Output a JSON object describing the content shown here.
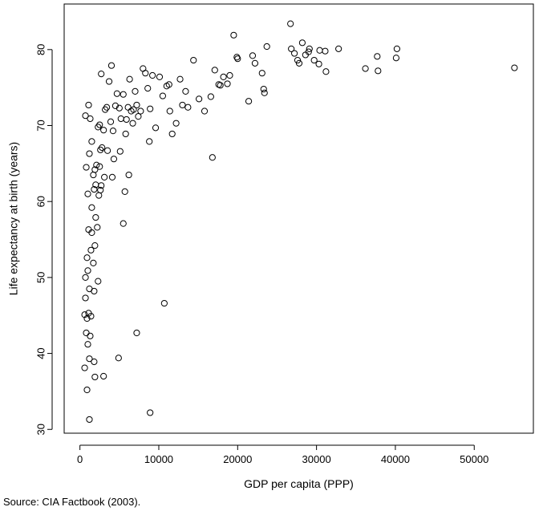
{
  "chart_data": {
    "type": "scatter",
    "xlabel": "GDP per capita (PPP)",
    "ylabel": "Life expectancy at birth (years)",
    "xlim": [
      -2000,
      57500
    ],
    "ylim": [
      29.5,
      86
    ],
    "xticks": [
      0,
      10000,
      20000,
      30000,
      40000,
      50000
    ],
    "yticks": [
      30,
      40,
      50,
      60,
      70,
      80
    ],
    "grid": false,
    "points": [
      [
        700,
        71.3
      ],
      [
        1100,
        72.7
      ],
      [
        1300,
        70.9
      ],
      [
        800,
        64.5
      ],
      [
        1200,
        66.3
      ],
      [
        1500,
        67.9
      ],
      [
        1000,
        61.0
      ],
      [
        1700,
        63.5
      ],
      [
        1900,
        64.2
      ],
      [
        2100,
        64.8
      ],
      [
        2300,
        69.8
      ],
      [
        2500,
        70.1
      ],
      [
        2600,
        66.8
      ],
      [
        2700,
        76.8
      ],
      [
        3000,
        69.4
      ],
      [
        3200,
        72.1
      ],
      [
        3400,
        72.4
      ],
      [
        3500,
        66.7
      ],
      [
        3700,
        75.8
      ],
      [
        4000,
        77.9
      ],
      [
        4200,
        69.3
      ],
      [
        4500,
        72.6
      ],
      [
        4700,
        74.2
      ],
      [
        5000,
        72.3
      ],
      [
        5200,
        70.9
      ],
      [
        5500,
        74.1
      ],
      [
        5800,
        68.9
      ],
      [
        6100,
        72.4
      ],
      [
        6300,
        76.1
      ],
      [
        6500,
        71.9
      ],
      [
        6800,
        72.1
      ],
      [
        7000,
        74.5
      ],
      [
        7200,
        72.7
      ],
      [
        7400,
        71.2
      ],
      [
        7700,
        71.9
      ],
      [
        8000,
        77.5
      ],
      [
        8300,
        76.9
      ],
      [
        8600,
        74.9
      ],
      [
        8900,
        72.2
      ],
      [
        9200,
        76.6
      ],
      [
        9600,
        69.7
      ],
      [
        10100,
        76.4
      ],
      [
        10500,
        73.9
      ],
      [
        11000,
        75.2
      ],
      [
        11400,
        71.9
      ],
      [
        11700,
        68.9
      ],
      [
        12200,
        70.3
      ],
      [
        12700,
        76.1
      ],
      [
        13000,
        72.7
      ],
      [
        13700,
        72.4
      ],
      [
        14400,
        78.6
      ],
      [
        15100,
        73.5
      ],
      [
        15800,
        71.9
      ],
      [
        16600,
        73.8
      ],
      [
        17100,
        77.3
      ],
      [
        17600,
        75.4
      ],
      [
        18200,
        76.4
      ],
      [
        19000,
        76.6
      ],
      [
        19500,
        81.9
      ],
      [
        20000,
        78.8
      ],
      [
        21400,
        73.2
      ],
      [
        21900,
        79.2
      ],
      [
        23100,
        76.9
      ],
      [
        23700,
        80.4
      ],
      [
        26700,
        83.4
      ],
      [
        27200,
        79.5
      ],
      [
        27800,
        78.2
      ],
      [
        28200,
        80.9
      ],
      [
        28600,
        79.3
      ],
      [
        29100,
        80.1
      ],
      [
        29700,
        78.6
      ],
      [
        30400,
        79.9
      ],
      [
        31100,
        79.8
      ],
      [
        32800,
        80.1
      ],
      [
        36200,
        77.5
      ],
      [
        37700,
        79.1
      ],
      [
        40100,
        78.9
      ],
      [
        40200,
        80.1
      ],
      [
        55100,
        77.6
      ],
      [
        900,
        52.6
      ],
      [
        1000,
        50.9
      ],
      [
        1200,
        48.5
      ],
      [
        1400,
        53.6
      ],
      [
        1700,
        51.9
      ],
      [
        1800,
        48.2
      ],
      [
        1900,
        54.2
      ],
      [
        2000,
        57.9
      ],
      [
        2200,
        56.6
      ],
      [
        2300,
        49.5
      ],
      [
        600,
        45.1
      ],
      [
        700,
        47.3
      ],
      [
        800,
        42.7
      ],
      [
        900,
        44.6
      ],
      [
        1000,
        41.2
      ],
      [
        1100,
        45.3
      ],
      [
        1200,
        39.3
      ],
      [
        1300,
        42.3
      ],
      [
        1400,
        44.9
      ],
      [
        1800,
        38.9
      ],
      [
        1900,
        36.9
      ],
      [
        600,
        38.1
      ],
      [
        900,
        35.2
      ],
      [
        1200,
        31.3
      ],
      [
        5500,
        57.1
      ],
      [
        5700,
        61.3
      ],
      [
        6200,
        63.5
      ],
      [
        4900,
        39.4
      ],
      [
        7200,
        42.7
      ],
      [
        8900,
        32.2
      ],
      [
        10700,
        46.6
      ],
      [
        16800,
        65.8
      ],
      [
        3000,
        37.0
      ],
      [
        1500,
        59.2
      ],
      [
        1800,
        61.6
      ],
      [
        2600,
        61.5
      ],
      [
        3100,
        63.2
      ],
      [
        4100,
        63.2
      ],
      [
        2500,
        64.6
      ],
      [
        2800,
        67.1
      ],
      [
        4300,
        65.6
      ],
      [
        5100,
        66.6
      ],
      [
        1100,
        56.3
      ],
      [
        1500,
        55.9
      ],
      [
        2000,
        62.2
      ],
      [
        700,
        50.0
      ],
      [
        2400,
        60.8
      ],
      [
        2700,
        62.1
      ],
      [
        3900,
        70.5
      ],
      [
        5900,
        70.8
      ],
      [
        6700,
        70.3
      ],
      [
        8800,
        67.9
      ],
      [
        11300,
        75.4
      ],
      [
        13400,
        74.5
      ],
      [
        17800,
        75.3
      ],
      [
        18700,
        75.5
      ],
      [
        19900,
        79.0
      ],
      [
        22200,
        78.2
      ],
      [
        23300,
        74.8
      ],
      [
        23400,
        74.3
      ],
      [
        26800,
        80.1
      ],
      [
        27600,
        78.6
      ],
      [
        29000,
        79.7
      ],
      [
        30300,
        78.1
      ],
      [
        31200,
        77.1
      ],
      [
        37800,
        77.2
      ]
    ]
  },
  "source_note": "Source: CIA Factbook (2003)."
}
